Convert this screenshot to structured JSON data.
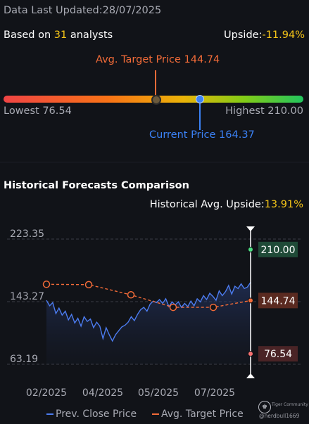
{
  "header": {
    "last_updated": "Data Last Updated:28/07/2025"
  },
  "summary": {
    "based_prefix": "Based on ",
    "analysts_count": "31",
    "based_suffix": " analysts",
    "upside_label": "Upside:",
    "upside_value": "-11.94%"
  },
  "range": {
    "avg_target_label": "Avg. Target Price 144.74",
    "lowest_label": "Lowest 76.54",
    "highest_label": "Highest 210.00",
    "current_label": "Current Price 164.37",
    "lowest": 76.54,
    "highest": 210.0,
    "avg_target": 144.74,
    "current": 164.37
  },
  "section": {
    "title": "Historical Forecasts Comparison",
    "hist_label": "Historical Avg. Upside:",
    "hist_value": "13.91%"
  },
  "colors": {
    "avg_target": "#f26b38",
    "current": "#3b82f6",
    "highest_badge": "#1f4a37",
    "avg_badge": "#5a2a20",
    "lowest_badge": "#4a2426",
    "accent_yellow": "#f5c518"
  },
  "chart_data": {
    "type": "line",
    "ylim": [
      63.19,
      223.35
    ],
    "y_ticks": [
      "223.35",
      "143.27",
      "63.19"
    ],
    "x_ticks": [
      "02/2025",
      "04/2025",
      "05/2025",
      "07/2025"
    ],
    "series": [
      {
        "name": "Prev. Close Price",
        "color": "#4c7cf0",
        "values": [
          145,
          138,
          142,
          128,
          135,
          126,
          131,
          120,
          127,
          116,
          122,
          112,
          124,
          118,
          121,
          110,
          117,
          112,
          96,
          110,
          101,
          93,
          101,
          106,
          111,
          113,
          117,
          124,
          119,
          127,
          133,
          136,
          131,
          140,
          144,
          142,
          146,
          141,
          147,
          137,
          143,
          139,
          143,
          136,
          141,
          137,
          144,
          138,
          147,
          143,
          151,
          146,
          154,
          150,
          145,
          157,
          151,
          156,
          164,
          153,
          163,
          160,
          166,
          160,
          162,
          168
        ]
      },
      {
        "name": "Avg. Target Price",
        "color": "#f26b38",
        "values": [
          165.5,
          165,
          152,
          136,
          136,
          144.74
        ]
      }
    ],
    "forecast_labels": [
      "210.00",
      "144.74",
      "76.54"
    ],
    "forecast_values": [
      210.0,
      144.74,
      76.54
    ]
  },
  "legend": {
    "prev_close": "Prev. Close Price",
    "avg_target": "Avg. Target Price"
  },
  "watermark": {
    "brand": "Tiger Community",
    "handle": "@nerdbull1669"
  }
}
